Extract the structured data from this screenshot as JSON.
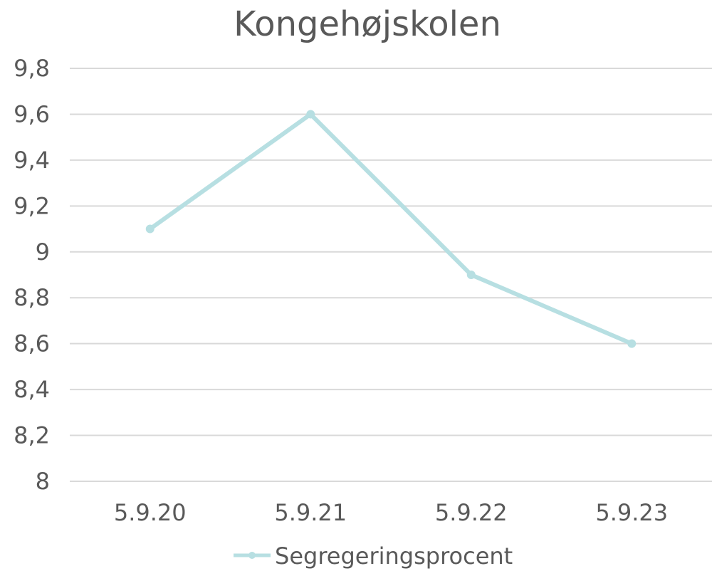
{
  "chart_data": {
    "type": "line",
    "title": "Kongehøjskolen",
    "categories": [
      "5.9.20",
      "5.9.21",
      "5.9.22",
      "5.9.23"
    ],
    "series": [
      {
        "name": "Segregeringsprocent",
        "values": [
          9.1,
          9.6,
          8.9,
          8.6
        ],
        "color": "#b7dfe2"
      }
    ],
    "y_ticks": [
      "9,8",
      "9,6",
      "9,4",
      "9,2",
      "9",
      "8,8",
      "8,6",
      "8,4",
      "8,2",
      "8"
    ],
    "ylim": [
      8,
      9.8
    ],
    "grid": true,
    "legend_position": "bottom"
  }
}
